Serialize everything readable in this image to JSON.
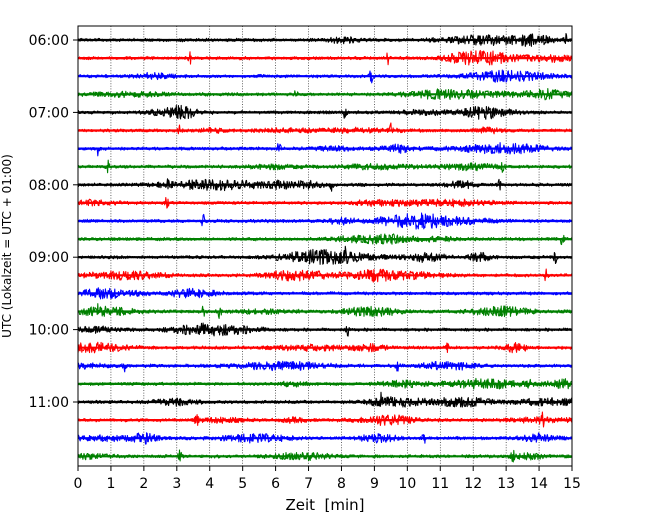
{
  "chart_data": {
    "type": "line",
    "title": "",
    "xlabel": "Zeit  [min]",
    "ylabel": "UTC (Lokalzeit = UTC + 01:00)",
    "xlim": [
      0,
      15
    ],
    "x_ticks": [
      0,
      1,
      2,
      3,
      4,
      5,
      6,
      7,
      8,
      9,
      10,
      11,
      12,
      13,
      14,
      15
    ],
    "x_tick_labels": [
      "0",
      "1",
      "2",
      "3",
      "4",
      "5",
      "6",
      "7",
      "8",
      "9",
      "10",
      "11",
      "12",
      "13",
      "14",
      "15"
    ],
    "y_tick_labels": [
      {
        "label": "06:00",
        "trace": 0
      },
      {
        "label": "07:00",
        "trace": 4
      },
      {
        "label": "08:00",
        "trace": 8
      },
      {
        "label": "09:00",
        "trace": 12
      },
      {
        "label": "10:00",
        "trace": 16
      },
      {
        "label": "11:00",
        "trace": 20
      }
    ],
    "grid": {
      "x": true,
      "y": false
    },
    "trace_colors": [
      "#000000",
      "#ff0000",
      "#0000ff",
      "#008000"
    ],
    "traces": [
      {
        "start": "06:00",
        "color": "#000000",
        "spikes": [
          14.8
        ]
      },
      {
        "start": "06:15",
        "color": "#ff0000",
        "spikes": [
          3.4,
          9.4
        ]
      },
      {
        "start": "06:30",
        "color": "#0000ff",
        "spikes": [
          8.9
        ]
      },
      {
        "start": "06:45",
        "color": "#008000",
        "spikes": [
          6.6
        ]
      },
      {
        "start": "07:00",
        "color": "#000000",
        "spikes": [
          8.1
        ]
      },
      {
        "start": "07:15",
        "color": "#ff0000",
        "spikes": [
          3.1,
          9.5
        ]
      },
      {
        "start": "07:30",
        "color": "#0000ff",
        "spikes": [
          0.6,
          6.1
        ]
      },
      {
        "start": "07:45",
        "color": "#008000",
        "spikes": [
          0.9,
          12.9
        ]
      },
      {
        "start": "08:00",
        "color": "#000000",
        "spikes": [
          2.7,
          7.7,
          12.8
        ]
      },
      {
        "start": "08:15",
        "color": "#ff0000",
        "spikes": [
          2.7
        ]
      },
      {
        "start": "08:30",
        "color": "#0000ff",
        "spikes": [
          3.8
        ]
      },
      {
        "start": "08:45",
        "color": "#008000",
        "spikes": [
          14.7
        ]
      },
      {
        "start": "09:00",
        "color": "#000000",
        "spikes": [
          8.1,
          14.5
        ]
      },
      {
        "start": "09:15",
        "color": "#ff0000",
        "spikes": [
          14.2
        ]
      },
      {
        "start": "09:30",
        "color": "#0000ff",
        "spikes": []
      },
      {
        "start": "09:45",
        "color": "#008000",
        "spikes": [
          0.6,
          3.8,
          4.3
        ]
      },
      {
        "start": "10:00",
        "color": "#000000",
        "spikes": [
          8.2
        ]
      },
      {
        "start": "10:15",
        "color": "#ff0000",
        "spikes": [
          11.2
        ]
      },
      {
        "start": "10:30",
        "color": "#0000ff",
        "spikes": [
          1.4,
          9.7
        ]
      },
      {
        "start": "10:45",
        "color": "#008000",
        "spikes": [
          13.7
        ]
      },
      {
        "start": "11:00",
        "color": "#000000",
        "spikes": [
          9.2
        ]
      },
      {
        "start": "11:15",
        "color": "#ff0000",
        "spikes": [
          3.6,
          14.1
        ]
      },
      {
        "start": "11:30",
        "color": "#0000ff",
        "spikes": [
          10.5
        ]
      },
      {
        "start": "11:45",
        "color": "#008000",
        "spikes": [
          3.1,
          13.2
        ]
      }
    ]
  }
}
